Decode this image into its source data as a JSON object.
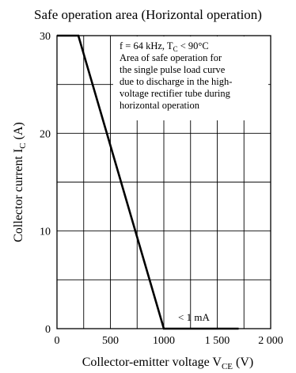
{
  "chart_data": {
    "type": "line",
    "title": "Safe operation area (Horizontal operation)",
    "xlabel": "Collector-emitter voltage",
    "xlabel_symbol": "V",
    "xlabel_subscript": "CE",
    "xlabel_unit": "(V)",
    "ylabel": "Collector current",
    "ylabel_symbol": "I",
    "ylabel_subscript": "C",
    "ylabel_unit": "(A)",
    "xlim": [
      0,
      2000
    ],
    "ylim": [
      0,
      30
    ],
    "grid": true,
    "x_ticks": [
      0,
      500,
      1000,
      1500,
      2000
    ],
    "x_tick_labels": [
      "0",
      "500",
      "1000",
      "1 500",
      "2 000"
    ],
    "y_ticks": [
      0,
      10,
      20,
      30
    ],
    "y_tick_labels": [
      "0",
      "10",
      "20",
      "30"
    ],
    "x_grid": [
      250,
      500,
      750,
      1000,
      1250,
      1500,
      1750
    ],
    "y_grid": [
      5,
      10,
      15,
      20,
      25,
      30
    ],
    "series": [
      {
        "x": [
          0,
          200,
          1000,
          1700
        ],
        "y": [
          30,
          30,
          0,
          0
        ]
      }
    ],
    "annotations": [
      {
        "lines": [
          "f = 64 kHz, T",
          "Area of safe operation for",
          "the single pulse load curve",
          "due to discharge in the high-",
          "voltage rectifier tube during",
          "horizontal operation"
        ],
        "line1_subscript": "C",
        "line1_suffix": " < 90°C"
      },
      {
        "text": "< 1 mA",
        "x": 1030,
        "y": 0
      }
    ],
    "colors": {
      "line": "#000000",
      "grid": "#000000",
      "background": "#ffffff"
    }
  }
}
